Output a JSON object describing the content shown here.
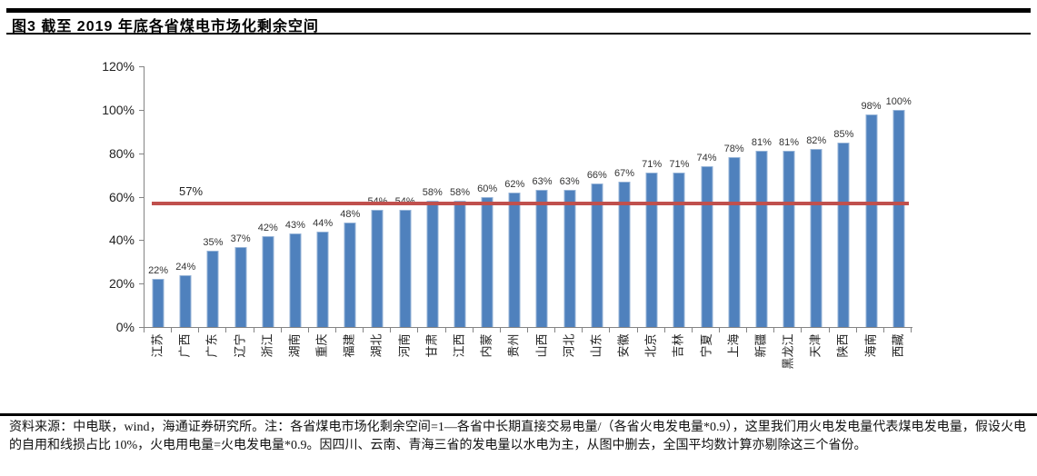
{
  "header": {
    "title": "图3  截至 2019 年底各省煤电市场化剩余空间"
  },
  "chart_data": {
    "type": "bar",
    "title": "截至2019年底各省煤电市场化剩余空间",
    "categories": [
      "江苏",
      "广西",
      "广东",
      "辽宁",
      "浙江",
      "湖南",
      "重庆",
      "福建",
      "湖北",
      "河南",
      "甘肃",
      "江西",
      "内蒙",
      "贵州",
      "山西",
      "河北",
      "山东",
      "安徽",
      "北京",
      "吉林",
      "宁夏",
      "上海",
      "新疆",
      "黑龙江",
      "天津",
      "陕西",
      "海南",
      "西藏"
    ],
    "values": [
      22,
      24,
      35,
      37,
      42,
      43,
      44,
      48,
      54,
      54,
      58,
      58,
      60,
      62,
      63,
      63,
      66,
      67,
      71,
      71,
      74,
      78,
      81,
      81,
      82,
      85,
      98,
      100
    ],
    "value_suffix": "%",
    "xlabel": "",
    "ylabel": "",
    "ylim": [
      0,
      120
    ],
    "yticks": [
      "120%",
      "100%",
      "80%",
      "60%",
      "40%",
      "20%",
      "0%"
    ],
    "grid": false,
    "legend": "none",
    "bar_color": "#4F81BD",
    "bar_border_color": "#95B3D7",
    "axis_color": "#848484",
    "reference_line": {
      "value": 57,
      "label": "57%",
      "color": "#C0504D"
    }
  },
  "footer": {
    "source_note": "资料来源：中电联，wind，海通证券研究所。注：各省煤电市场化剩余空间=1—各省中长期直接交易电量/（各省火电发电量*0.9），这里我们用火电发电量代表煤电发电量，假设火电的自用和线损占比 10%，火电用电量=火电发电量*0.9。因四川、云南、青海三省的发电量以水电为主，从图中删去，全国平均数计算亦剔除这三个省份。"
  }
}
